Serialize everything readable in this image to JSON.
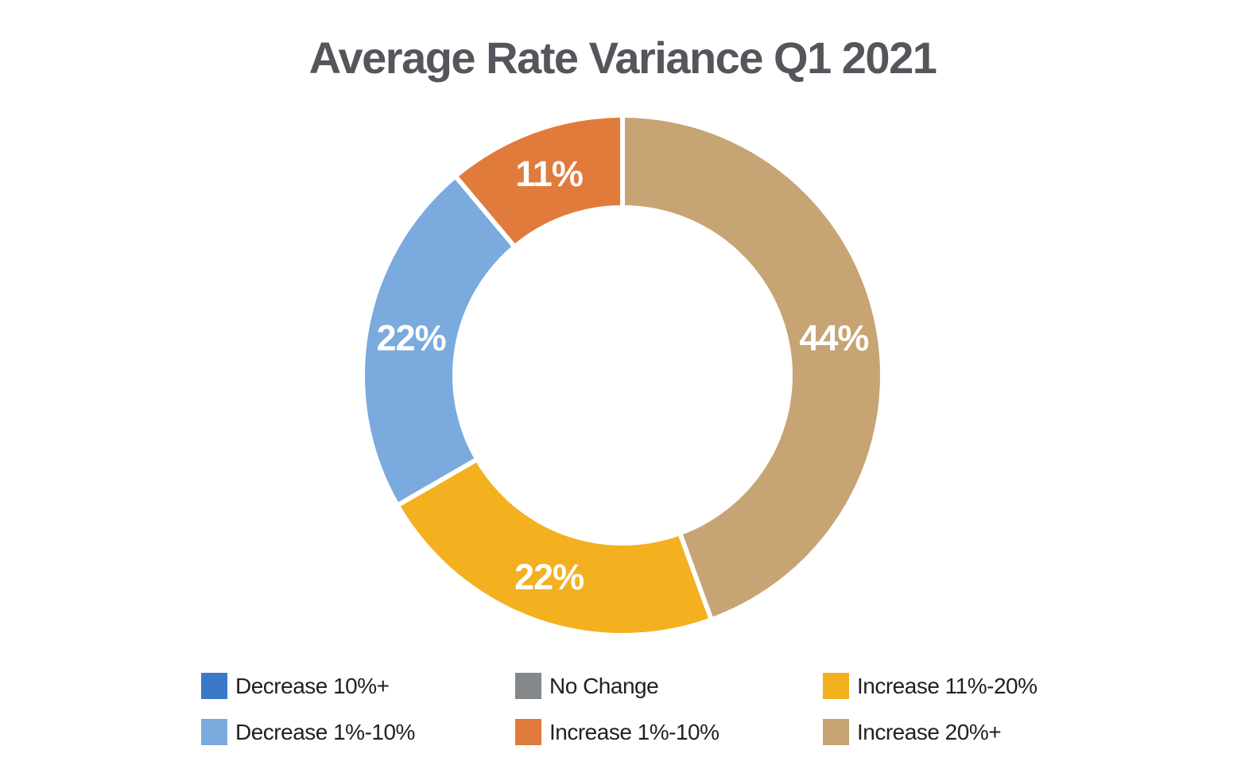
{
  "page": {
    "background_color": "#ffffff"
  },
  "chart_data": {
    "type": "pie",
    "subtype": "donut",
    "title": "Average Rate Variance Q1 2021",
    "title_color": "#54565b",
    "direction": "clockwise",
    "start_angle_deg": 0,
    "inner_radius_ratio": 0.66,
    "slice_gap_color": "#ffffff",
    "value_label_color": "#ffffff",
    "segments": [
      {
        "label": "Increase 20%+",
        "value": 44,
        "display": "44%",
        "color": "#c6a473"
      },
      {
        "label": "Increase 11%-20%",
        "value": 22,
        "display": "22%",
        "color": "#f3b01f"
      },
      {
        "label": "Decrease 1%-10%",
        "value": 22,
        "display": "22%",
        "color": "#7aaade"
      },
      {
        "label": "Increase 1%-10%",
        "value": 11,
        "display": "11%",
        "color": "#e07b3c"
      }
    ],
    "legend_position": "bottom",
    "legend_text_color": "#231f20",
    "legend": [
      {
        "label": "Decrease 10%+",
        "color": "#3a78c8"
      },
      {
        "label": "No Change",
        "color": "#85888b"
      },
      {
        "label": "Increase 11%-20%",
        "color": "#f3b01f"
      },
      {
        "label": "Decrease 1%-10%",
        "color": "#7aaade"
      },
      {
        "label": "Increase 1%-10%",
        "color": "#e07b3c"
      },
      {
        "label": "Increase 20%+",
        "color": "#c6a473"
      }
    ]
  }
}
